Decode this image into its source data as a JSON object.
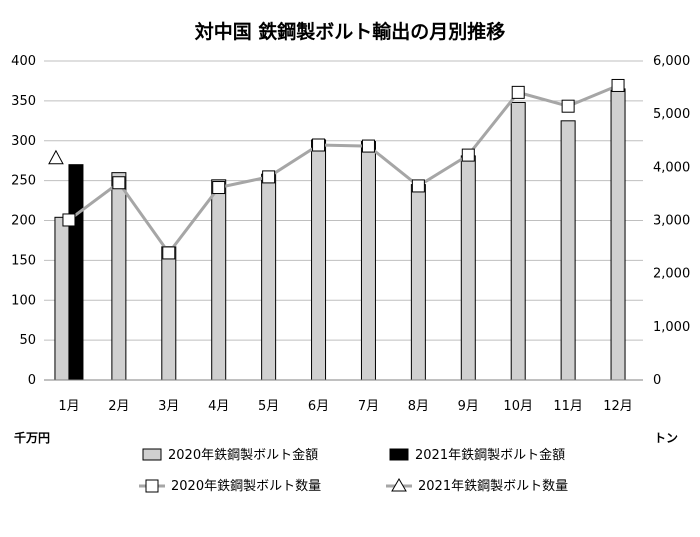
{
  "chart_data": {
    "type": "bar",
    "title": "対中国 鉄鋼製ボルト輸出の月別推移",
    "categories": [
      "1月",
      "2月",
      "3月",
      "4月",
      "5月",
      "6月",
      "7月",
      "8月",
      "9月",
      "10月",
      "11月",
      "12月"
    ],
    "left_axis": {
      "unit": "千万円",
      "ylim": [
        0,
        400
      ],
      "ticks": [
        "0",
        "50",
        "100",
        "150",
        "200",
        "250",
        "300",
        "350",
        "400"
      ]
    },
    "right_axis": {
      "unit": "トン",
      "ylim": [
        0,
        6000
      ],
      "ticks": [
        "0",
        "1,000",
        "2,000",
        "3,000",
        "4,000",
        "5,000",
        "6,000"
      ]
    },
    "grid": true,
    "legend_position": "bottom",
    "series": [
      {
        "name": "2020年鉄鋼製ボルト金額",
        "kind": "bar",
        "axis": "left",
        "color": "#d0d0d0",
        "values": [
          204,
          260,
          167,
          251,
          258,
          301,
          299,
          245,
          281,
          348,
          325,
          365
        ]
      },
      {
        "name": "2021年鉄鋼製ボルト金額",
        "kind": "bar",
        "axis": "left",
        "color": "#000000",
        "values": [
          270,
          null,
          null,
          null,
          null,
          null,
          null,
          null,
          null,
          null,
          null,
          null
        ]
      },
      {
        "name": "2020年鉄鋼製ボルト数量",
        "kind": "line",
        "marker": "square",
        "axis": "right",
        "color": "#a6a6a6",
        "values": [
          3010,
          3710,
          2390,
          3620,
          3820,
          4420,
          4400,
          3650,
          4230,
          5410,
          5150,
          5540
        ]
      },
      {
        "name": "2021年鉄鋼製ボルト数量",
        "kind": "line",
        "marker": "triangle",
        "axis": "right",
        "color": "#a6a6a6",
        "values": [
          4180,
          null,
          null,
          null,
          null,
          null,
          null,
          null,
          null,
          null,
          null,
          null
        ]
      }
    ]
  }
}
